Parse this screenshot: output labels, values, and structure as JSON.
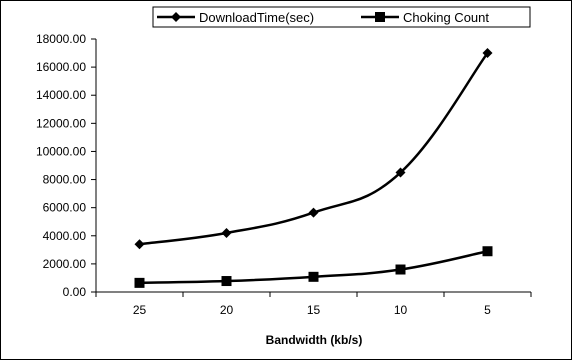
{
  "chart_data": {
    "type": "line",
    "title": "",
    "xlabel": "Bandwidth (kb/s)",
    "ylabel": "",
    "categories": [
      "25",
      "20",
      "15",
      "10",
      "5"
    ],
    "ylim": [
      0,
      18000
    ],
    "yticks": [
      "0.00",
      "2000.00",
      "4000.00",
      "6000.00",
      "8000.00",
      "10000.00",
      "12000.00",
      "14000.00",
      "16000.00",
      "18000.00"
    ],
    "grid": false,
    "legend_position": "top",
    "series": [
      {
        "name": "DownloadTime(sec)",
        "marker": "diamond",
        "color": "#000000",
        "smooth": true,
        "values": [
          3400,
          4200,
          5650,
          8500,
          17000
        ]
      },
      {
        "name": "Choking Count",
        "marker": "square",
        "color": "#000000",
        "smooth": true,
        "values": [
          650,
          780,
          1080,
          1600,
          2900
        ]
      }
    ]
  }
}
